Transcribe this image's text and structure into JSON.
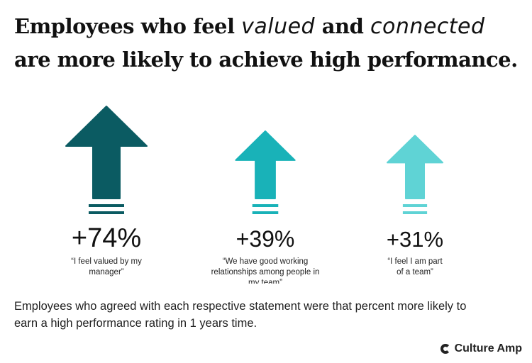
{
  "headline": {
    "part1": "Employees who feel",
    "emph1": "valued",
    "part2": "and",
    "emph2": "connected",
    "line2": "are more likely to achieve high performance."
  },
  "chart_data": {
    "type": "bar",
    "categories": [
      "“I feel valued by my manager”",
      "“We have good working relationships among people in my team”",
      "“I feel I am part of a team”"
    ],
    "values": [
      74,
      39,
      31
    ],
    "value_labels": [
      "+74%",
      "+39%",
      "+31%"
    ],
    "label_lines": [
      [
        "“I feel valued by my",
        "manager”"
      ],
      [
        "“We have good working",
        "relationships among people in",
        "my team”"
      ],
      [
        "“I feel I am part",
        "of a team”"
      ]
    ],
    "colors": [
      "#0b5b62",
      "#19b2b8",
      "#5fd3d5"
    ],
    "title": "",
    "xlabel": "",
    "ylabel": ""
  },
  "footnote": "Employees who agreed with each respective statement were that percent more likely to earn a high performance rating in 1 years time.",
  "logo": {
    "text": "Culture Amp",
    "icon": "culture-amp-c-icon"
  }
}
